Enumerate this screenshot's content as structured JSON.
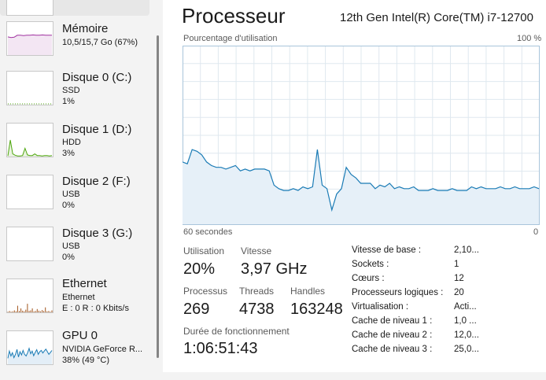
{
  "sidebar": {
    "items": [
      {
        "title": "Mémoire",
        "line1": "10,5/15,7 Go (67%)",
        "line2": ""
      },
      {
        "title": "Disque 0 (C:)",
        "line1": "SSD",
        "line2": "1%"
      },
      {
        "title": "Disque 1 (D:)",
        "line1": "HDD",
        "line2": "3%"
      },
      {
        "title": "Disque 2 (F:)",
        "line1": "USB",
        "line2": "0%"
      },
      {
        "title": "Disque 3 (G:)",
        "line1": "USB",
        "line2": "0%"
      },
      {
        "title": "Ethernet",
        "line1": "Ethernet",
        "line2": "E : 0 R : 0 Kbits/s"
      },
      {
        "title": "GPU 0",
        "line1": "NVIDIA GeForce R...",
        "line2": "38% (49 °C)"
      }
    ]
  },
  "main": {
    "title": "Processeur",
    "cpu_name": "12th Gen Intel(R) Core(TM) i7-12700",
    "util_label": "Pourcentage d'utilisation",
    "max_label": "100 %",
    "time_label": "60 secondes",
    "zero_label": "0"
  },
  "stats": {
    "utilisation": {
      "label": "Utilisation",
      "value": "20%"
    },
    "vitesse": {
      "label": "Vitesse",
      "value": "3,97 GHz"
    },
    "processus": {
      "label": "Processus",
      "value": "269"
    },
    "threads": {
      "label": "Threads",
      "value": "4738"
    },
    "handles": {
      "label": "Handles",
      "value": "163248"
    },
    "uptime": {
      "label": "Durée de fonctionnement",
      "value": "1:06:51:43"
    }
  },
  "specs": [
    {
      "label": "Vitesse de base :",
      "value": "2,10..."
    },
    {
      "label": "Sockets :",
      "value": "1"
    },
    {
      "label": "Cœurs :",
      "value": "12"
    },
    {
      "label": "Processeurs logiques :",
      "value": "20"
    },
    {
      "label": "Virtualisation :",
      "value": "Acti..."
    },
    {
      "label": "Cache de niveau 1 :",
      "value": "1,0 ..."
    },
    {
      "label": "Cache de niveau 2 :",
      "value": "12,0..."
    },
    {
      "label": "Cache de niveau 3 :",
      "value": "25,0..."
    }
  ],
  "chart_data": {
    "type": "area",
    "x_range_seconds": [
      60,
      0
    ],
    "ylim": [
      0,
      100
    ],
    "series": [
      {
        "values": [
          35,
          34,
          42,
          41,
          39,
          35,
          33,
          32,
          32,
          31,
          32,
          33,
          30,
          31,
          30,
          31,
          31,
          31,
          30,
          22,
          20,
          19,
          19,
          20,
          19,
          21,
          20,
          21,
          42,
          22,
          20,
          8,
          17,
          20,
          32,
          28,
          26,
          23,
          23,
          23,
          20,
          22,
          21,
          23,
          20,
          21,
          20,
          20,
          21,
          19,
          19,
          19,
          20,
          19,
          19,
          19,
          20,
          19,
          19,
          19,
          21,
          20,
          21,
          20,
          20,
          20,
          21,
          20,
          20,
          21,
          20,
          20,
          20,
          21,
          20
        ]
      }
    ],
    "colors": {
      "line": "#1a7bb5",
      "fill": "#e6f0f8",
      "grid": "#dfe8ef",
      "border": "#a9c5db"
    }
  },
  "sidebar_thumbs": {
    "memory": [
      55,
      53,
      54,
      60,
      60,
      59,
      60,
      60,
      61,
      60,
      60,
      61,
      60,
      60,
      60
    ],
    "disk1": [
      2,
      50,
      8,
      4,
      2,
      2,
      3,
      25,
      5,
      3,
      3,
      8,
      3,
      3,
      2,
      3,
      3,
      2,
      3
    ],
    "ethernet": [
      2,
      4,
      2,
      3,
      6,
      3,
      20,
      4,
      12,
      5,
      3,
      8,
      26,
      4,
      6,
      12,
      3,
      4,
      10,
      5,
      3,
      7,
      4,
      15,
      3,
      4,
      2,
      6
    ],
    "gpu": [
      18,
      40,
      25,
      35,
      20,
      30,
      45,
      22,
      38,
      28,
      42,
      30,
      25,
      35,
      48,
      32,
      40,
      26,
      36,
      44,
      30,
      38,
      42,
      34,
      40,
      46,
      38,
      30,
      36,
      42
    ]
  },
  "colors": {
    "memory": "#a032a0",
    "disk": "#4da60c",
    "ethernet": "#a0521a",
    "gpu": "#1a7bb5"
  }
}
